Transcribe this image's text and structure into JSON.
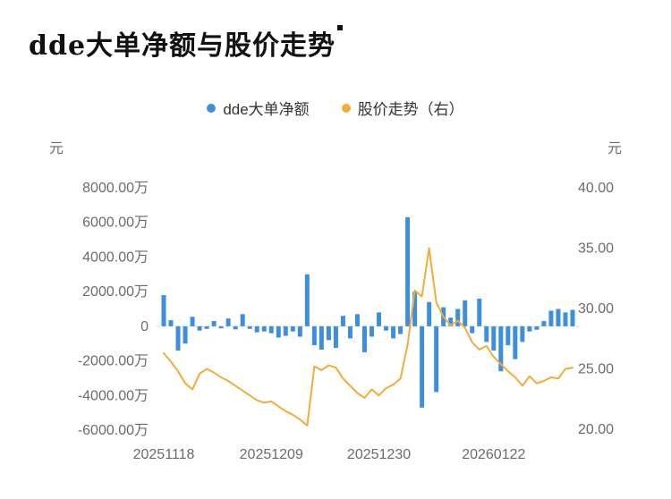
{
  "title": "dde大单净额与股价走势",
  "legend": [
    {
      "label": "dde大单净额",
      "color": "#3d8fdd"
    },
    {
      "label": "股价走势（右）",
      "color": "#f2ac38"
    }
  ],
  "left_axis_unit": "元",
  "right_axis_unit": "元",
  "colors": {
    "bar": "#3d8fdd",
    "line": "#f2ac38",
    "axis_text": "#6b6b6b",
    "zero_line": "#d9d9d9"
  },
  "chart_data": {
    "type": "bar+line",
    "title": "dde大单净额与股价走势",
    "x": [
      "20251118",
      "20251119",
      "20251120",
      "20251121",
      "20251124",
      "20251125",
      "20251126",
      "20251127",
      "20251128",
      "20251201",
      "20251202",
      "20251203",
      "20251204",
      "20251205",
      "20251208",
      "20251209",
      "20251210",
      "20251211",
      "20251212",
      "20251215",
      "20251216",
      "20251217",
      "20251218",
      "20251219",
      "20251222",
      "20251223",
      "20251224",
      "20251225",
      "20251226",
      "20251229",
      "20251230",
      "20251231",
      "20260102",
      "20260105",
      "20260106",
      "20260107",
      "20260108",
      "20260109",
      "20260112",
      "20260113",
      "20260114",
      "20260115",
      "20260116",
      "20260119",
      "20260120",
      "20260121",
      "20260122",
      "20260123",
      "20260126",
      "20260127",
      "20260128",
      "20260129",
      "20260130",
      "20260202",
      "20260203",
      "20260204",
      "20260205",
      "20260206"
    ],
    "x_ticks": [
      {
        "label": "20251118",
        "index": 0
      },
      {
        "label": "20251209",
        "index": 15
      },
      {
        "label": "20251230",
        "index": 30
      },
      {
        "label": "20260122",
        "index": 46
      }
    ],
    "series": [
      {
        "name": "dde大单净额",
        "type": "bar",
        "axis": "left",
        "unit": "万",
        "values": [
          1800,
          350,
          -1400,
          -1000,
          550,
          -250,
          -150,
          300,
          -120,
          450,
          -180,
          700,
          -150,
          -350,
          -300,
          -400,
          -650,
          -550,
          -300,
          -600,
          3000,
          -1100,
          -1350,
          -800,
          -1250,
          600,
          -700,
          700,
          -1500,
          -600,
          800,
          -250,
          -700,
          -450,
          6300,
          2000,
          -4700,
          1400,
          -3800,
          1100,
          500,
          1000,
          1500,
          -400,
          1600,
          -900,
          -1400,
          -2600,
          -1100,
          -1900,
          -900,
          -300,
          -200,
          300,
          900,
          1000,
          800,
          950
        ]
      },
      {
        "name": "股价走势（右）",
        "type": "line",
        "axis": "right",
        "unit": "元",
        "values": [
          26.3,
          25.6,
          24.8,
          23.8,
          23.3,
          24.6,
          25.0,
          24.7,
          24.3,
          24.0,
          23.6,
          23.2,
          22.8,
          22.4,
          22.2,
          22.3,
          21.9,
          21.5,
          21.2,
          20.8,
          20.3,
          25.2,
          24.9,
          25.3,
          25.1,
          24.2,
          23.6,
          23.0,
          22.6,
          23.3,
          22.8,
          23.4,
          23.7,
          24.2,
          27.0,
          31.5,
          31.0,
          35.0,
          30.5,
          29.3,
          28.6,
          29.0,
          28.4,
          27.2,
          26.6,
          26.9,
          26.0,
          25.4,
          24.8,
          24.3,
          23.6,
          24.4,
          23.8,
          24.0,
          24.3,
          24.2,
          25.0,
          25.1
        ]
      }
    ],
    "left_axis": {
      "label": "元",
      "min": -6000,
      "max": 8000,
      "ticks": [
        {
          "label": "8000.00万",
          "value": 8000
        },
        {
          "label": "6000.00万",
          "value": 6000
        },
        {
          "label": "4000.00万",
          "value": 4000
        },
        {
          "label": "2000.00万",
          "value": 2000
        },
        {
          "label": "0",
          "value": 0
        },
        {
          "label": "-2000.00万",
          "value": -2000
        },
        {
          "label": "-4000.00万",
          "value": -4000
        },
        {
          "label": "-6000.00万",
          "value": -6000
        }
      ]
    },
    "right_axis": {
      "label": "元",
      "min": 20,
      "max": 40,
      "ticks": [
        {
          "label": "40.00",
          "value": 40
        },
        {
          "label": "35.00",
          "value": 35
        },
        {
          "label": "30.00",
          "value": 30
        },
        {
          "label": "25.00",
          "value": 25
        },
        {
          "label": "20.00",
          "value": 20
        }
      ]
    },
    "grid": false,
    "legend_position": "top-center",
    "zero_line": "dashed"
  }
}
